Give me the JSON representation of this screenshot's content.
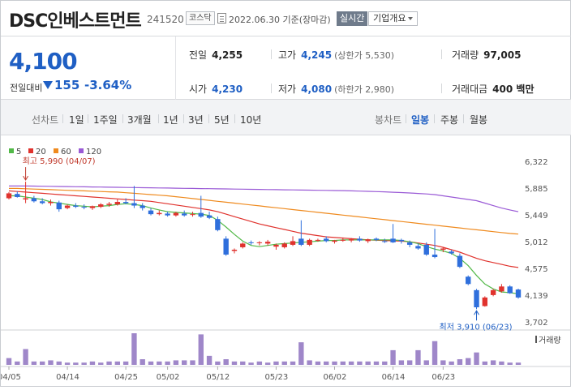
{
  "header": {
    "name": "DSC인베스트먼트",
    "code": "241520",
    "market": "코스닥",
    "date_text": "2022.06.30 기준(장마감)",
    "realtime_label": "실시간",
    "overview_label": "기업개요"
  },
  "quote": {
    "price": "4,100",
    "change_label": "전일대비",
    "change": "155",
    "change_pct": "-3.64%",
    "direction": "down",
    "prev_close_label": "전일",
    "prev_close": "4,255",
    "open_label": "시가",
    "open": "4,230",
    "high_label": "고가",
    "high": "4,245",
    "upper_limit_text": "(상한가 5,530)",
    "low_label": "저가",
    "low": "4,080",
    "lower_limit_text": "(하한가 2,980)",
    "volume_label": "거래량",
    "volume": "97,005",
    "amount_label": "거래대금",
    "amount": "400 백만"
  },
  "toolbar": {
    "line_chart_label": "선차트",
    "ranges": [
      "1일",
      "1주일",
      "3개월",
      "1년",
      "3년",
      "5년",
      "10년"
    ],
    "candle_label": "봉차트",
    "periods": [
      "일봉",
      "주봉",
      "월봉"
    ],
    "active_period": "일봉"
  },
  "colors": {
    "up": "#e0322d",
    "down": "#2f6fdc",
    "ma5": "#52b948",
    "ma20": "#e0322d",
    "ma60": "#ef8a1e",
    "ma120": "#9a5ad6",
    "volume": "#9f87c9"
  },
  "chart_data": {
    "type": "candlestick",
    "legend": [
      {
        "name": "5",
        "color": "#52b948"
      },
      {
        "name": "20",
        "color": "#e0322d"
      },
      {
        "name": "60",
        "color": "#ef8a1e"
      },
      {
        "name": "120",
        "color": "#9a5ad6"
      }
    ],
    "y_ticks": [
      "6,322",
      "5,885",
      "5,449",
      "5,012",
      "4,575",
      "4,139",
      "3,702"
    ],
    "ylim": [
      3702,
      6322
    ],
    "x_ticks": [
      "04/05",
      "04/14",
      "04/25",
      "05/02",
      "05/12",
      "05/23",
      "06/02",
      "06/14",
      "06/23"
    ],
    "x_tick_index": [
      0,
      7,
      14,
      19,
      25,
      32,
      39,
      46,
      52
    ],
    "annotation_high": "최고 5,990 (04/07)",
    "annotation_low": "최저 3,910 (06/23)",
    "volume_label": "거래량",
    "candles": [
      {
        "o": 5720,
        "h": 5820,
        "l": 5700,
        "c": 5800
      },
      {
        "o": 5790,
        "h": 5830,
        "l": 5730,
        "c": 5740
      },
      {
        "o": 5700,
        "h": 5990,
        "l": 5640,
        "c": 5720
      },
      {
        "o": 5720,
        "h": 5760,
        "l": 5650,
        "c": 5670
      },
      {
        "o": 5670,
        "h": 5720,
        "l": 5620,
        "c": 5640
      },
      {
        "o": 5640,
        "h": 5700,
        "l": 5600,
        "c": 5660
      },
      {
        "o": 5650,
        "h": 5680,
        "l": 5500,
        "c": 5540
      },
      {
        "o": 5560,
        "h": 5620,
        "l": 5540,
        "c": 5600
      },
      {
        "o": 5600,
        "h": 5640,
        "l": 5560,
        "c": 5580
      },
      {
        "o": 5580,
        "h": 5620,
        "l": 5540,
        "c": 5570
      },
      {
        "o": 5560,
        "h": 5600,
        "l": 5530,
        "c": 5590
      },
      {
        "o": 5580,
        "h": 5640,
        "l": 5560,
        "c": 5620
      },
      {
        "o": 5610,
        "h": 5660,
        "l": 5580,
        "c": 5630
      },
      {
        "o": 5620,
        "h": 5700,
        "l": 5600,
        "c": 5660
      },
      {
        "o": 5660,
        "h": 5720,
        "l": 5620,
        "c": 5640
      },
      {
        "o": 5640,
        "h": 5920,
        "l": 5560,
        "c": 5600
      },
      {
        "o": 5600,
        "h": 5640,
        "l": 5520,
        "c": 5560
      },
      {
        "o": 5520,
        "h": 5560,
        "l": 5440,
        "c": 5460
      },
      {
        "o": 5460,
        "h": 5520,
        "l": 5440,
        "c": 5480
      },
      {
        "o": 5470,
        "h": 5500,
        "l": 5420,
        "c": 5440
      },
      {
        "o": 5440,
        "h": 5500,
        "l": 5420,
        "c": 5480
      },
      {
        "o": 5470,
        "h": 5520,
        "l": 5420,
        "c": 5440
      },
      {
        "o": 5460,
        "h": 5500,
        "l": 5420,
        "c": 5460
      },
      {
        "o": 5480,
        "h": 5760,
        "l": 5400,
        "c": 5420
      },
      {
        "o": 5440,
        "h": 5500,
        "l": 5380,
        "c": 5400
      },
      {
        "o": 5380,
        "h": 5420,
        "l": 5180,
        "c": 5200
      },
      {
        "o": 5060,
        "h": 5100,
        "l": 4780,
        "c": 4800
      },
      {
        "o": 4860,
        "h": 4900,
        "l": 4820,
        "c": 4880
      },
      {
        "o": 4920,
        "h": 5000,
        "l": 4900,
        "c": 4980
      },
      {
        "o": 5000,
        "h": 5030,
        "l": 4960,
        "c": 4990
      },
      {
        "o": 4990,
        "h": 5020,
        "l": 4950,
        "c": 5000
      },
      {
        "o": 4980,
        "h": 5040,
        "l": 4950,
        "c": 5010
      },
      {
        "o": 4930,
        "h": 4980,
        "l": 4880,
        "c": 4960
      },
      {
        "o": 4920,
        "h": 5000,
        "l": 4900,
        "c": 4980
      },
      {
        "o": 4960,
        "h": 5100,
        "l": 4940,
        "c": 5020
      },
      {
        "o": 5060,
        "h": 5360,
        "l": 4940,
        "c": 4960
      },
      {
        "o": 4960,
        "h": 5060,
        "l": 4940,
        "c": 5040
      },
      {
        "o": 5030,
        "h": 5060,
        "l": 5010,
        "c": 5040
      },
      {
        "o": 5060,
        "h": 5100,
        "l": 5000,
        "c": 5020
      },
      {
        "o": 5010,
        "h": 5040,
        "l": 4980,
        "c": 5030
      },
      {
        "o": 5040,
        "h": 5080,
        "l": 5010,
        "c": 5040
      },
      {
        "o": 5030,
        "h": 5070,
        "l": 5000,
        "c": 5050
      },
      {
        "o": 5060,
        "h": 5100,
        "l": 5010,
        "c": 5030
      },
      {
        "o": 5020,
        "h": 5060,
        "l": 4990,
        "c": 5050
      },
      {
        "o": 5060,
        "h": 5080,
        "l": 5020,
        "c": 5040
      },
      {
        "o": 5020,
        "h": 5060,
        "l": 4990,
        "c": 5010
      },
      {
        "o": 5060,
        "h": 5300,
        "l": 4990,
        "c": 5000
      },
      {
        "o": 5040,
        "h": 5060,
        "l": 4980,
        "c": 5020
      },
      {
        "o": 5000,
        "h": 5030,
        "l": 4920,
        "c": 4960
      },
      {
        "o": 4940,
        "h": 4980,
        "l": 4880,
        "c": 4900
      },
      {
        "o": 4960,
        "h": 5000,
        "l": 4780,
        "c": 4800
      },
      {
        "o": 4800,
        "h": 5220,
        "l": 4740,
        "c": 4760
      },
      {
        "o": 4880,
        "h": 4920,
        "l": 4840,
        "c": 4900
      },
      {
        "o": 4850,
        "h": 4880,
        "l": 4800,
        "c": 4820
      },
      {
        "o": 4780,
        "h": 4820,
        "l": 4580,
        "c": 4600
      },
      {
        "o": 4440,
        "h": 4460,
        "l": 4300,
        "c": 4320
      },
      {
        "o": 4220,
        "h": 4240,
        "l": 3910,
        "c": 3940
      },
      {
        "o": 3960,
        "h": 4120,
        "l": 3950,
        "c": 4100
      },
      {
        "o": 4140,
        "h": 4240,
        "l": 4120,
        "c": 4220
      },
      {
        "o": 4200,
        "h": 4320,
        "l": 4180,
        "c": 4280
      },
      {
        "o": 4280,
        "h": 4300,
        "l": 4160,
        "c": 4170
      },
      {
        "o": 4230,
        "h": 4245,
        "l": 4080,
        "c": 4100
      }
    ],
    "volumes": [
      6,
      3,
      14,
      3,
      3,
      4,
      3,
      2,
      2,
      2,
      3,
      2,
      3,
      3,
      3,
      28,
      5,
      3,
      3,
      3,
      4,
      4,
      4,
      27,
      8,
      3,
      5,
      3,
      3,
      2,
      3,
      2,
      3,
      3,
      3,
      20,
      4,
      3,
      3,
      3,
      3,
      3,
      3,
      3,
      3,
      3,
      13,
      4,
      4,
      13,
      4,
      21,
      4,
      3,
      5,
      6,
      11,
      3,
      4,
      3,
      2,
      2
    ],
    "ma5": [
      5760,
      5760,
      5740,
      5720,
      5700,
      5660,
      5640,
      5620,
      5600,
      5590,
      5580,
      5590,
      5600,
      5620,
      5630,
      5620,
      5600,
      5560,
      5530,
      5500,
      5490,
      5480,
      5470,
      5460,
      5440,
      5360,
      5250,
      5130,
      5020,
      4950,
      4930,
      4950,
      4970,
      4980,
      4990,
      5000,
      5010,
      5020,
      5030,
      5030,
      5040,
      5040,
      5040,
      5040,
      5040,
      5040,
      5040,
      5030,
      5010,
      4980,
      4930,
      4890,
      4860,
      4820,
      4740,
      4620,
      4460,
      4320,
      4240,
      4190,
      4180,
      4160
    ],
    "ma20": [
      5840,
      5830,
      5820,
      5810,
      5800,
      5790,
      5780,
      5770,
      5760,
      5750,
      5740,
      5730,
      5720,
      5710,
      5700,
      5690,
      5680,
      5670,
      5650,
      5630,
      5610,
      5590,
      5570,
      5550,
      5530,
      5500,
      5460,
      5420,
      5380,
      5340,
      5300,
      5270,
      5240,
      5210,
      5180,
      5150,
      5130,
      5110,
      5090,
      5080,
      5070,
      5060,
      5050,
      5040,
      5035,
      5030,
      5025,
      5020,
      5010,
      4990,
      4970,
      4950,
      4920,
      4880,
      4840,
      4790,
      4740,
      4700,
      4670,
      4640,
      4610,
      4590
    ],
    "ma60": [
      5880,
      5880,
      5875,
      5870,
      5865,
      5860,
      5855,
      5850,
      5845,
      5840,
      5835,
      5830,
      5825,
      5820,
      5810,
      5800,
      5790,
      5780,
      5770,
      5760,
      5745,
      5730,
      5715,
      5700,
      5685,
      5670,
      5655,
      5640,
      5625,
      5610,
      5595,
      5580,
      5565,
      5550,
      5535,
      5520,
      5505,
      5490,
      5475,
      5460,
      5445,
      5430,
      5415,
      5400,
      5385,
      5370,
      5355,
      5340,
      5325,
      5310,
      5295,
      5280,
      5265,
      5250,
      5235,
      5220,
      5205,
      5190,
      5175,
      5160,
      5145,
      5135
    ],
    "ma120": [
      5920,
      5920,
      5920,
      5918,
      5916,
      5914,
      5912,
      5910,
      5908,
      5906,
      5904,
      5902,
      5900,
      5898,
      5896,
      5894,
      5892,
      5890,
      5888,
      5886,
      5884,
      5882,
      5880,
      5878,
      5876,
      5874,
      5872,
      5870,
      5868,
      5866,
      5864,
      5862,
      5860,
      5858,
      5856,
      5854,
      5852,
      5850,
      5848,
      5846,
      5844,
      5840,
      5836,
      5832,
      5828,
      5824,
      5818,
      5812,
      5806,
      5798,
      5790,
      5780,
      5760,
      5740,
      5720,
      5700,
      5680,
      5640,
      5600,
      5560,
      5530,
      5500
    ]
  }
}
